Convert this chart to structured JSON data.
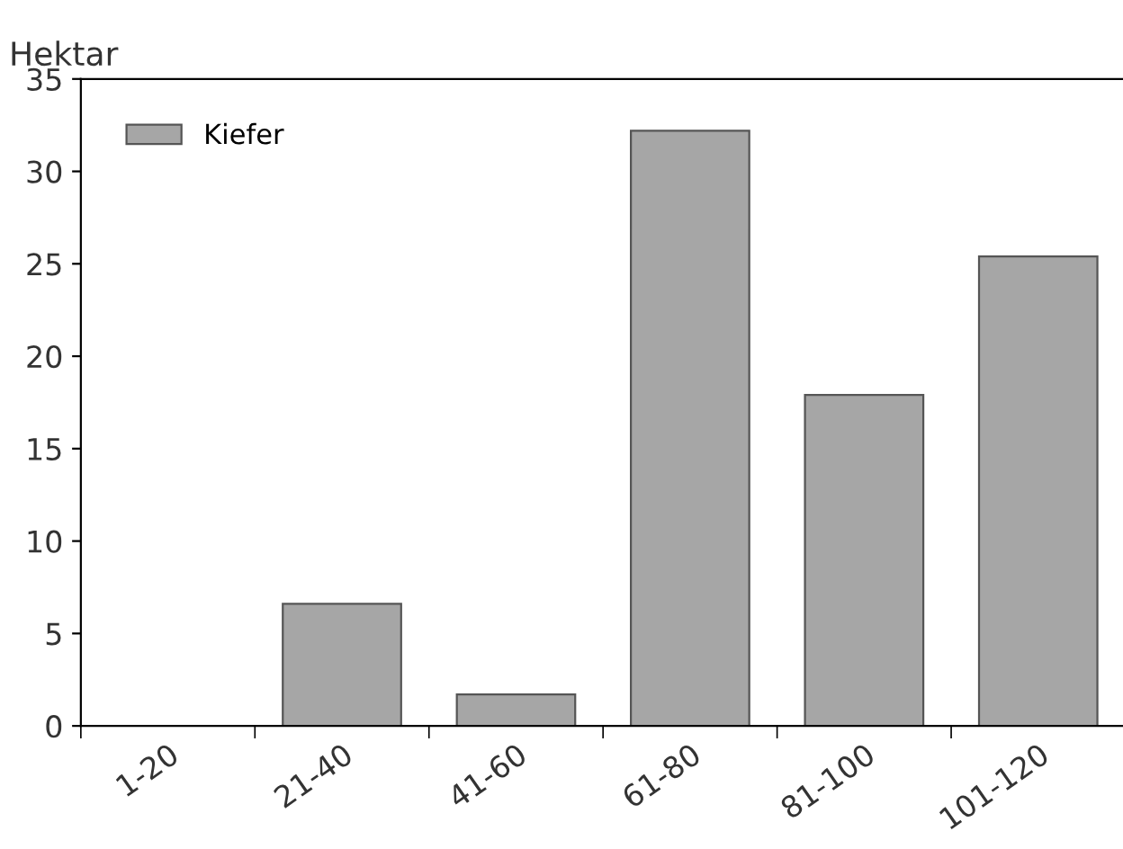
{
  "chart_data": {
    "type": "bar",
    "ylabel": "Hektar",
    "categories": [
      "1-20",
      "21-40",
      "41-60",
      "61-80",
      "81-100",
      "101-120"
    ],
    "series": [
      {
        "name": "Kiefer",
        "color": "#a6a6a6",
        "values": [
          null,
          6.6,
          1.7,
          32.2,
          17.9,
          25.4
        ]
      }
    ],
    "ylim": [
      0,
      35
    ],
    "yticks": [
      0,
      5,
      10,
      15,
      20,
      25,
      30,
      35
    ],
    "grid": false,
    "legend": "top left"
  }
}
